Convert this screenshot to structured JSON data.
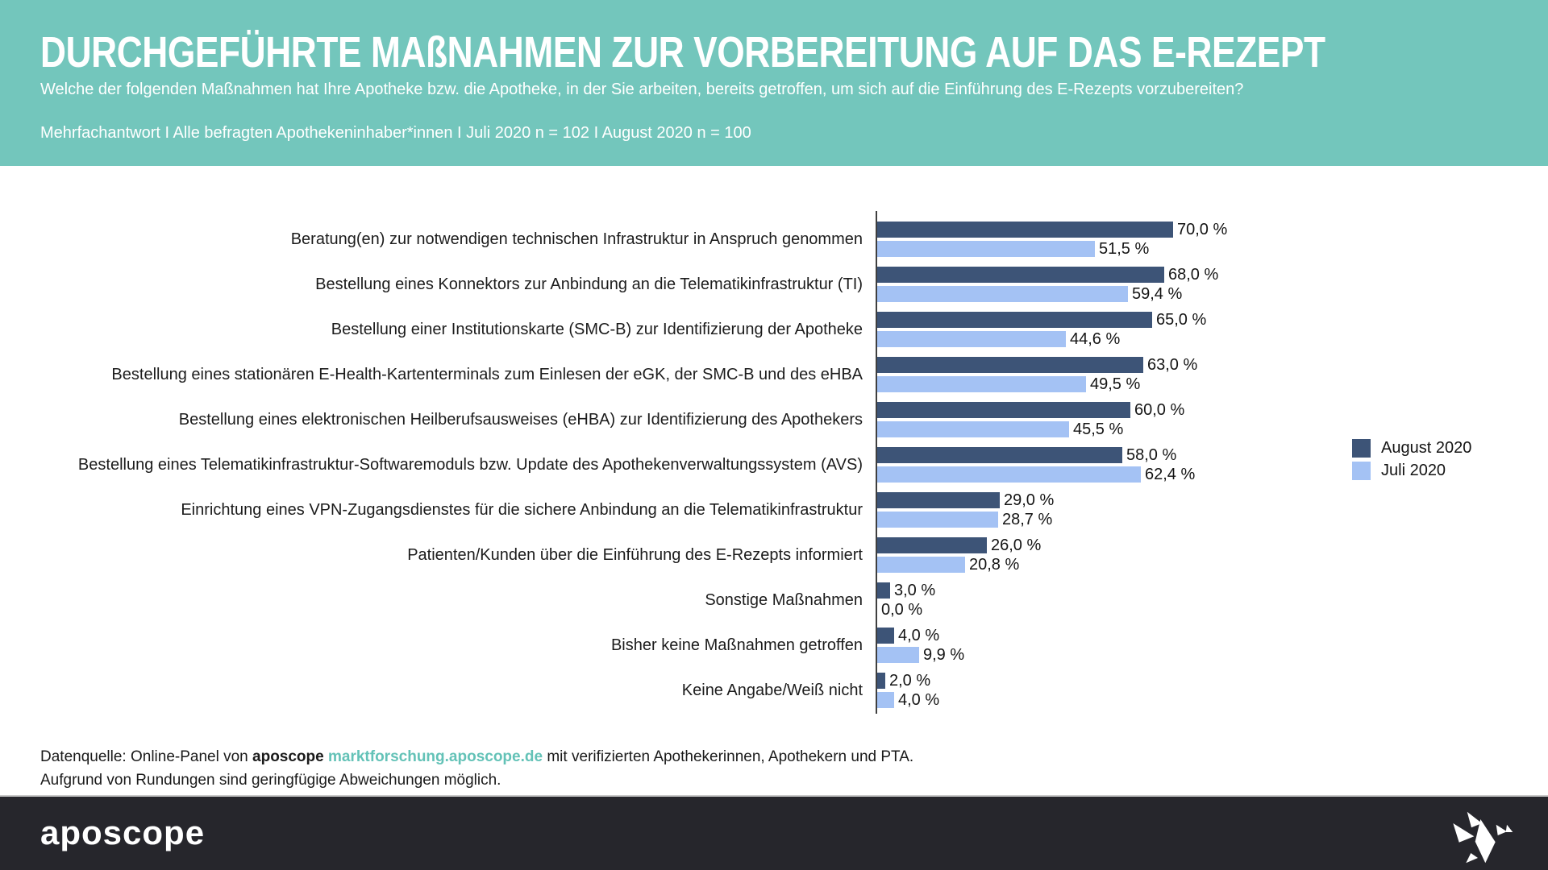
{
  "header": {
    "title": "DURCHGEFÜHRTE MAßNAHMEN ZUR VORBEREITUNG AUF DAS E-REZEPT",
    "subtitle": "Welche der folgenden Maßnahmen hat Ihre Apotheke bzw. die Apotheke, in der Sie arbeiten, bereits getroffen, um sich auf die Einführung des E-Rezepts vorzubereiten?",
    "meta": "Mehrfachantwort I Alle befragten Apothekeninhaber*innen I Juli 2020 n = 102 I August 2020 n = 100",
    "background_color": "#73C6BC"
  },
  "chart_data": {
    "type": "bar",
    "orientation": "horizontal",
    "title": "Durchgeführte Maßnahmen zur Vorbereitung auf das E-Rezept",
    "xlabel": "",
    "ylabel": "",
    "xlim": [
      0,
      75
    ],
    "grid": false,
    "legend_position": "right",
    "value_suffix": " %",
    "categories": [
      "Beratung(en) zur notwendigen technischen Infrastruktur in Anspruch genommen",
      "Bestellung eines Konnektors zur Anbindung an die Telematikinfrastruktur (TI)",
      "Bestellung einer Institutionskarte (SMC-B) zur Identifizierung der Apotheke",
      "Bestellung eines stationären E-Health-Kartenterminals zum Einlesen der eGK, der SMC-B und des eHBA",
      "Bestellung eines elektronischen Heilberufsausweises (eHBA) zur Identifizierung des Apothekers",
      "Bestellung eines Telematikinfrastruktur-Softwaremoduls bzw. Update des Apothekenverwaltungssystem (AVS)",
      "Einrichtung eines VPN-Zugangsdienstes für die sichere Anbindung an die Telematikinfrastruktur",
      "Patienten/Kunden über die Einführung des E-Rezepts informiert",
      "Sonstige Maßnahmen",
      "Bisher keine Maßnahmen getroffen",
      "Keine Angabe/Weiß nicht"
    ],
    "series": [
      {
        "name": "August 2020",
        "color": "#3D5477",
        "values": [
          70.0,
          68.0,
          65.0,
          63.0,
          60.0,
          58.0,
          29.0,
          26.0,
          3.0,
          4.0,
          2.0
        ],
        "display_values": [
          "70,0 %",
          "68,0 %",
          "65,0 %",
          "63,0 %",
          "60,0 %",
          "58,0 %",
          "29,0 %",
          "26,0 %",
          "3,0 %",
          "4,0 %",
          "2,0 %"
        ]
      },
      {
        "name": "Juli 2020",
        "color": "#A4C2F4",
        "values": [
          51.5,
          59.4,
          44.6,
          49.5,
          45.5,
          62.4,
          28.7,
          20.8,
          0.0,
          9.9,
          4.0
        ],
        "display_values": [
          "51,5 %",
          "59,4 %",
          "44,6 %",
          "49,5 %",
          "45,5 %",
          "62,4 %",
          "28,7 %",
          "20,8 %",
          "0,0 %",
          "9,9 %",
          "4,0 %"
        ]
      }
    ]
  },
  "footnote": {
    "line1_prefix": "Datenquelle: Online-Panel von ",
    "line1_brand": "aposcope",
    "line1_link": "marktforschung.aposcope.de",
    "line1_suffix": " mit verifizierten Apothekerinnen, Apothekern und PTA.",
    "line2": "Aufgrund von Rundungen sind geringfügige Abweichungen möglich."
  },
  "footer": {
    "logo_text": "aposcope",
    "background_color": "#26262C",
    "icon": "origami-bird-icon"
  }
}
